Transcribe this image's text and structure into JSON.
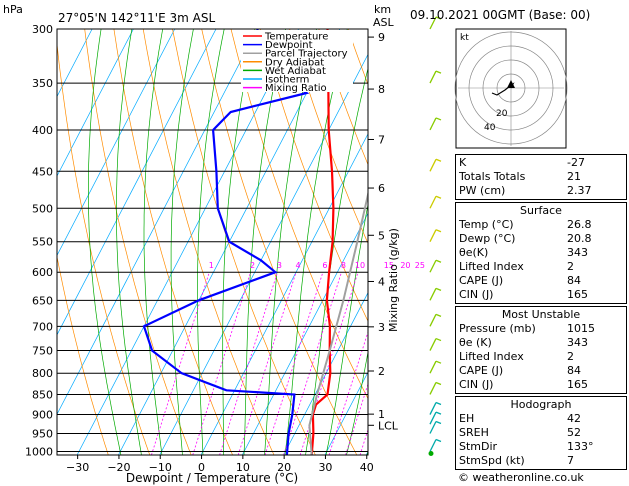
{
  "header": {
    "left_label": "hPa",
    "location": "27°05'N 142°11'E 3m ASL",
    "km_label": "km",
    "asl_label": "ASL",
    "date": "09.10.2021 00GMT (Base: 00)"
  },
  "legend": [
    {
      "name": "Temperature",
      "color": "#ff0000"
    },
    {
      "name": "Dewpoint",
      "color": "#0000ff"
    },
    {
      "name": "Parcel Trajectory",
      "color": "#a0a0a0"
    },
    {
      "name": "Dry Adiabat",
      "color": "#ff8c00"
    },
    {
      "name": "Wet Adiabat",
      "color": "#00aa00"
    },
    {
      "name": "Isotherm",
      "color": "#00aaff"
    },
    {
      "name": "Mixing Ratio",
      "color": "#ff00ff"
    }
  ],
  "chart_data": {
    "type": "line",
    "subtype": "skew-T log-P",
    "xlabel": "Dewpoint / Temperature (°C)",
    "ylabel_right": "Mixing Ratio (g/kg)",
    "x_ticks": [
      -30,
      -20,
      -10,
      0,
      10,
      20,
      30,
      40
    ],
    "pressure_ticks": [
      300,
      350,
      400,
      450,
      500,
      550,
      600,
      650,
      700,
      750,
      800,
      850,
      900,
      950,
      1000
    ],
    "pressure_range": [
      300,
      1010
    ],
    "km_ticks": [
      {
        "label": "9",
        "p": 307
      },
      {
        "label": "8",
        "p": 356
      },
      {
        "label": "7",
        "p": 411
      },
      {
        "label": "6",
        "p": 472
      },
      {
        "label": "5",
        "p": 540
      },
      {
        "label": "4",
        "p": 616
      },
      {
        "label": "3",
        "p": 701
      },
      {
        "label": "2",
        "p": 795
      },
      {
        "label": "1",
        "p": 899
      },
      {
        "label": "LCL",
        "p": 928
      }
    ],
    "mixing_ratio_labels": [
      "1",
      "2",
      "3",
      "4",
      "6",
      "8",
      "10",
      "15",
      "20",
      "25"
    ],
    "series": [
      {
        "name": "Temperature",
        "color": "#ff0000",
        "points": [
          [
            26.8,
            1010
          ],
          [
            24.5,
            950
          ],
          [
            22,
            900
          ],
          [
            21.5,
            875
          ],
          [
            23,
            850
          ],
          [
            21,
            800
          ],
          [
            18,
            750
          ],
          [
            15,
            700
          ],
          [
            11,
            650
          ],
          [
            8,
            600
          ],
          [
            5,
            550
          ],
          [
            1,
            500
          ],
          [
            -4,
            450
          ],
          [
            -10,
            400
          ],
          [
            -16,
            350
          ],
          [
            -23,
            300
          ]
        ]
      },
      {
        "name": "Dewpoint",
        "color": "#0000ff",
        "points": [
          [
            20.8,
            1010
          ],
          [
            18.5,
            950
          ],
          [
            17,
            900
          ],
          [
            15,
            850
          ],
          [
            -2,
            840
          ],
          [
            -15,
            800
          ],
          [
            -25,
            750
          ],
          [
            -30,
            700
          ],
          [
            -20,
            650
          ],
          [
            -5,
            600
          ],
          [
            -10,
            580
          ],
          [
            -20,
            550
          ],
          [
            -27,
            500
          ],
          [
            -32,
            450
          ],
          [
            -38,
            400
          ],
          [
            -36,
            380
          ],
          [
            -20,
            360
          ],
          [
            -30,
            340
          ],
          [
            -36,
            320
          ],
          [
            -40,
            300
          ]
        ]
      },
      {
        "name": "Parcel Trajectory",
        "color": "#a0a0a0",
        "points": [
          [
            26.8,
            1010
          ],
          [
            22.5,
            928
          ],
          [
            20.5,
            850
          ],
          [
            18,
            750
          ],
          [
            15,
            650
          ],
          [
            11,
            550
          ],
          [
            6,
            450
          ],
          [
            0,
            350
          ],
          [
            -4,
            300
          ]
        ]
      }
    ]
  },
  "hodograph": {
    "label": "kt",
    "ring_labels": [
      "20",
      "40"
    ]
  },
  "indices": {
    "k": {
      "label": "K",
      "value": "-27"
    },
    "tt": {
      "label": "Totals Totals",
      "value": "21"
    },
    "pw": {
      "label": "PW (cm)",
      "value": "2.37"
    }
  },
  "surface": {
    "title": "Surface",
    "rows": [
      {
        "label": "Temp (°C)",
        "value": "26.8"
      },
      {
        "label": "Dewp (°C)",
        "value": "20.8"
      },
      {
        "label": "θe(K)",
        "value": "343"
      },
      {
        "label": "Lifted Index",
        "value": "2"
      },
      {
        "label": "CAPE (J)",
        "value": "84"
      },
      {
        "label": "CIN (J)",
        "value": "165"
      }
    ]
  },
  "unstable": {
    "title": "Most Unstable",
    "rows": [
      {
        "label": "Pressure (mb)",
        "value": "1015"
      },
      {
        "label": "θe (K)",
        "value": "343"
      },
      {
        "label": "Lifted Index",
        "value": "2"
      },
      {
        "label": "CAPE (J)",
        "value": "84"
      },
      {
        "label": "CIN (J)",
        "value": "165"
      }
    ]
  },
  "hodo_table": {
    "title": "Hodograph",
    "rows": [
      {
        "label": "EH",
        "value": "42"
      },
      {
        "label": "SREH",
        "value": "52"
      },
      {
        "label": "StmDir",
        "value": "133°"
      },
      {
        "label": "StmSpd (kt)",
        "value": "7"
      }
    ]
  },
  "footer": "© weatheronline.co.uk"
}
